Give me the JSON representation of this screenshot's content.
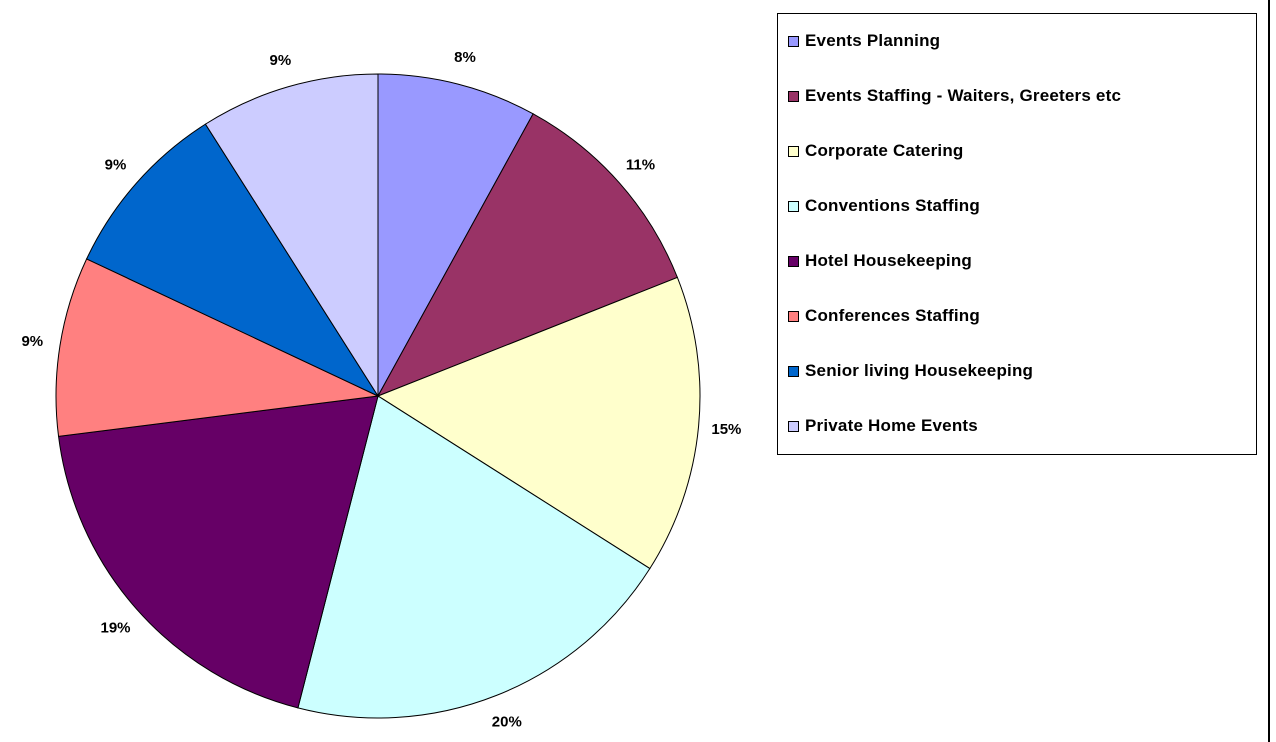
{
  "chart_data": {
    "type": "pie",
    "slices": [
      {
        "label": "Events Planning",
        "value": 8,
        "value_label": "8%",
        "color": "#9999FF"
      },
      {
        "label": "Events Staffing - Waiters, Greeters etc",
        "value": 11,
        "value_label": "11%",
        "color": "#993366"
      },
      {
        "label": "Corporate Catering",
        "value": 15,
        "value_label": "15%",
        "color": "#FFFFCC"
      },
      {
        "label": "Conventions  Staffing",
        "value": 20,
        "value_label": "20%",
        "color": "#CCFFFF"
      },
      {
        "label": "Hotel Housekeeping",
        "value": 19,
        "value_label": "19%",
        "color": "#660066"
      },
      {
        "label": "Conferences Staffing",
        "value": 9,
        "value_label": "9%",
        "color": "#FF8080"
      },
      {
        "label": "Senior living  Housekeeping",
        "value": 9,
        "value_label": "9%",
        "color": "#0066CC"
      },
      {
        "label": "Private Home Events",
        "value": 9,
        "value_label": "9%",
        "color": "#CCCCFF"
      }
    ],
    "legend_position": "right",
    "start": "12 o'clock",
    "direction": "clockwise"
  }
}
